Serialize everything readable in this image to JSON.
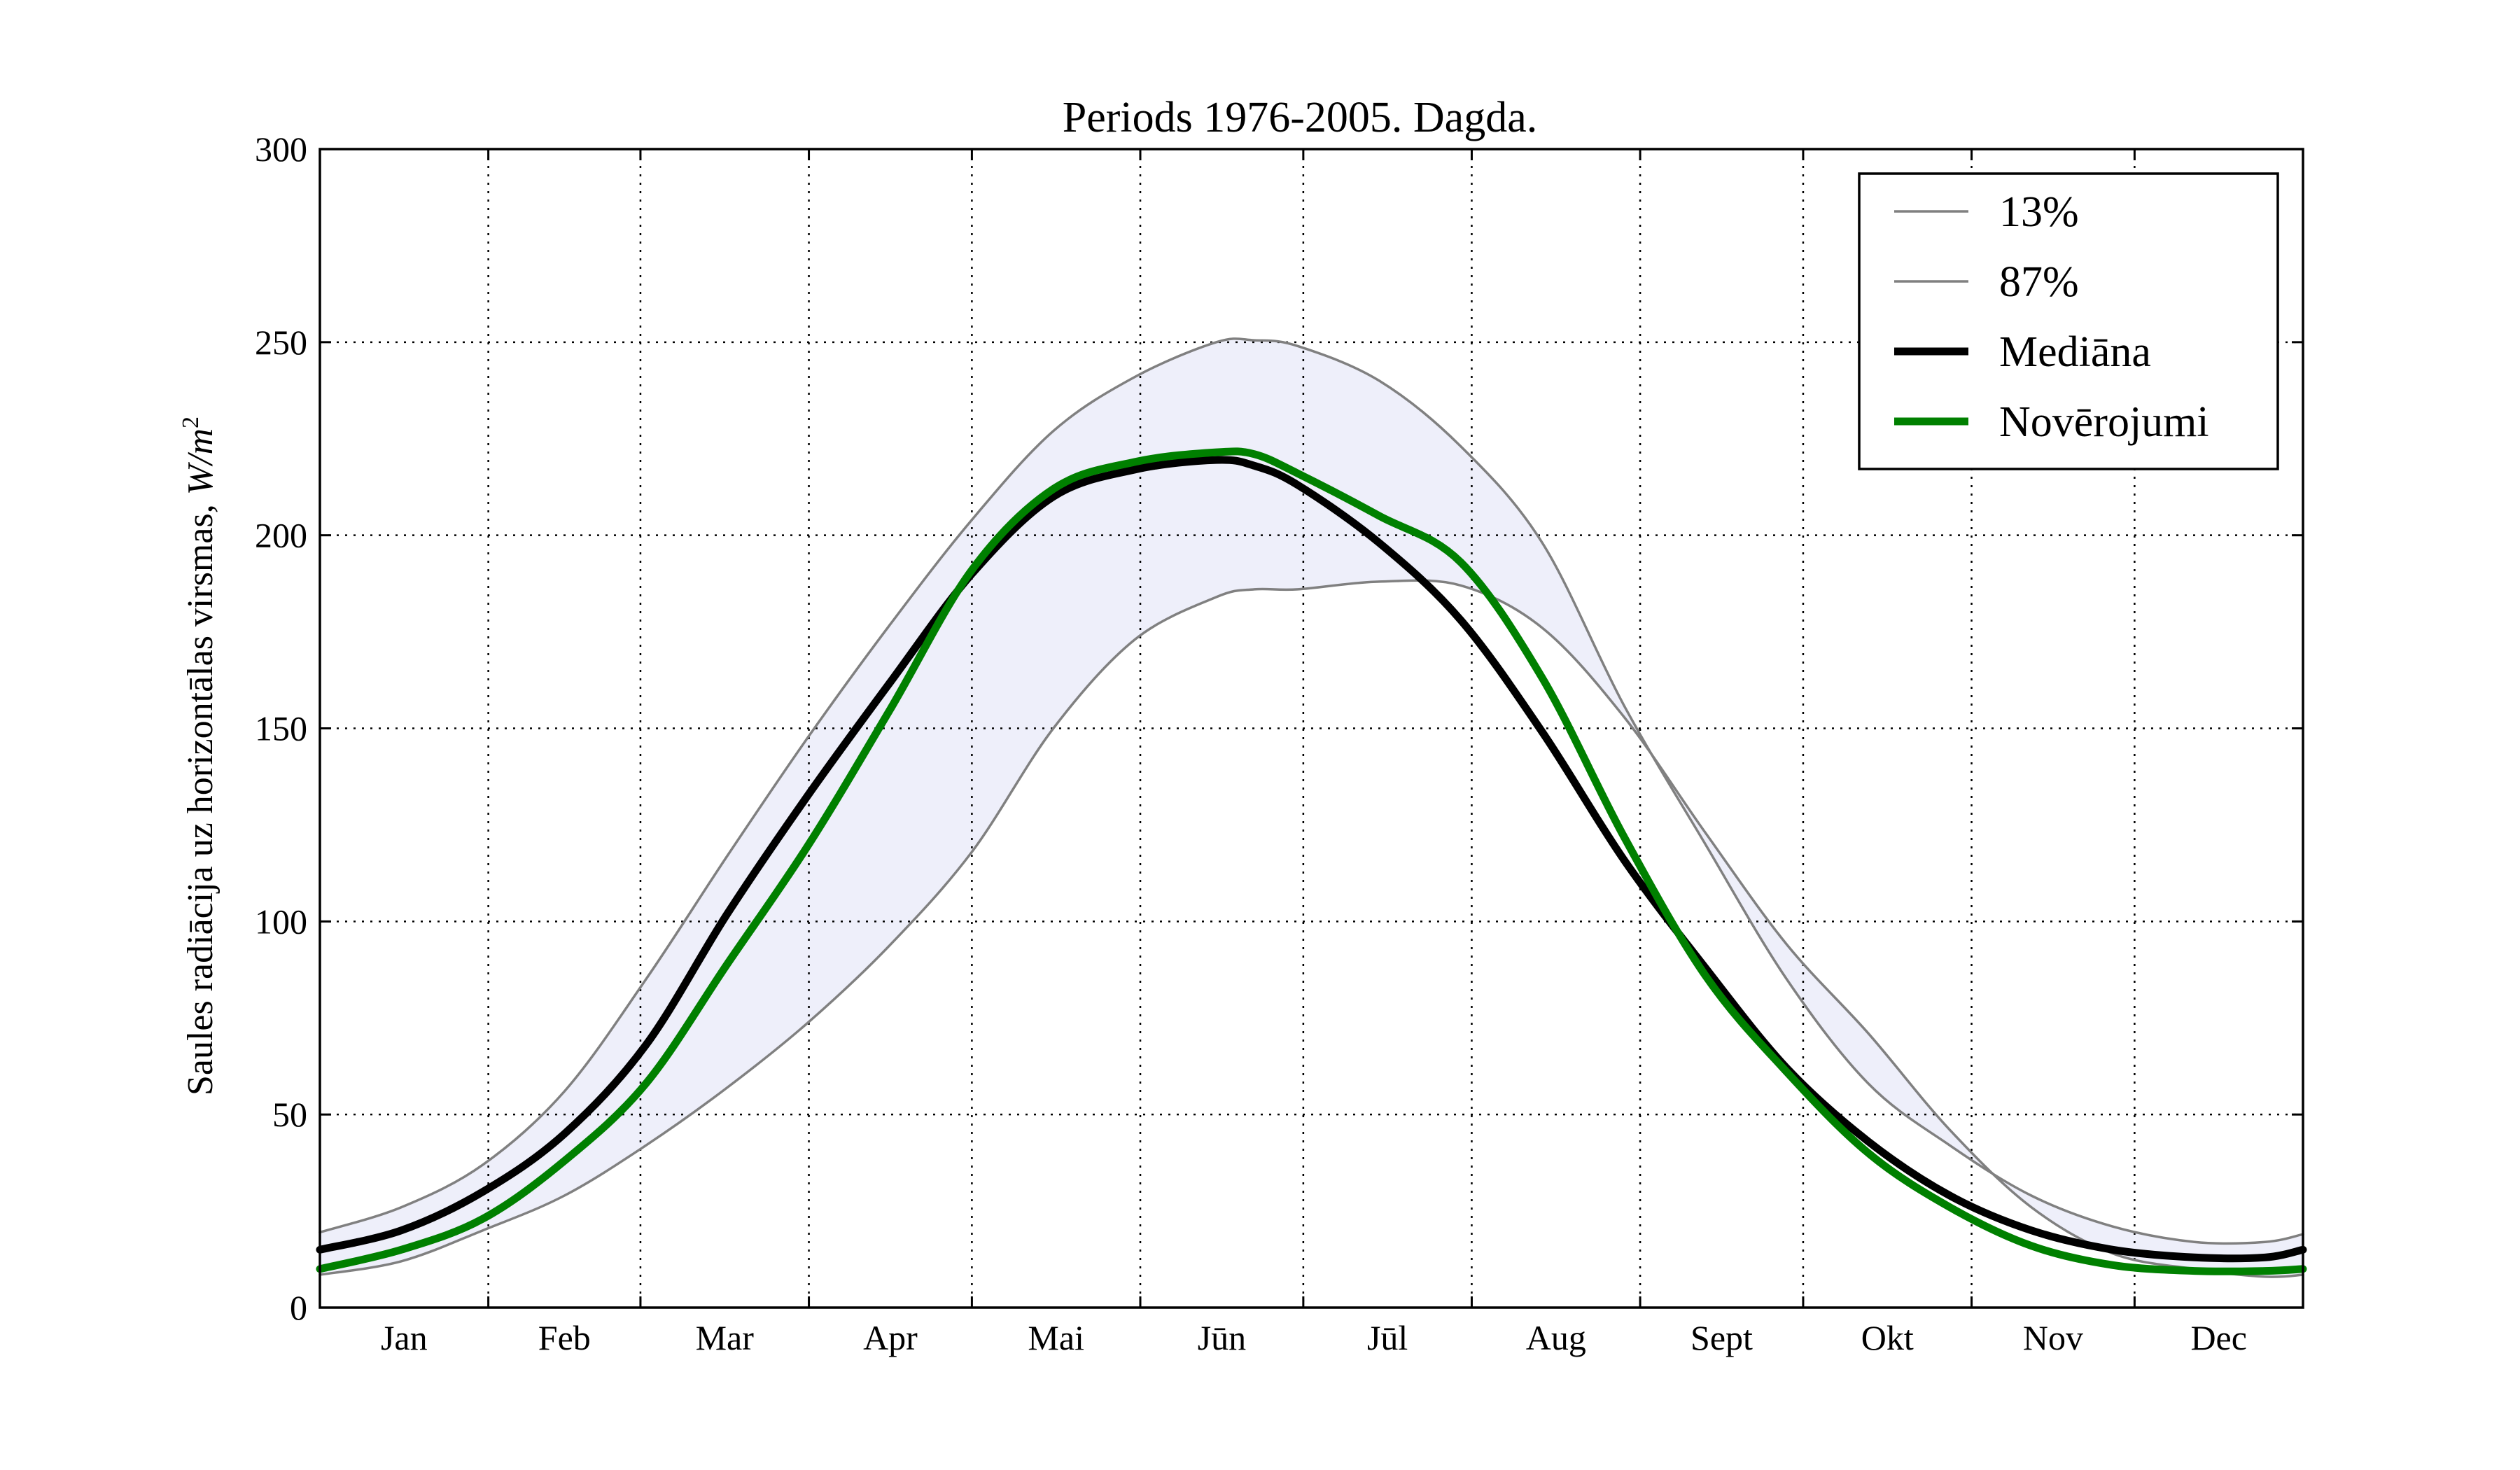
{
  "chart_data": {
    "type": "line",
    "title": "Periods 1976-2005. Dagda.",
    "ylabel": "Saules radiācija uz horizontālas virsmas, ",
    "ylabel_unit": "W/m",
    "ylabel_unit_exp": "2",
    "xlabel": "",
    "ylim": [
      0,
      300
    ],
    "yticks": [
      0,
      50,
      100,
      150,
      200,
      250,
      300
    ],
    "xlim": [
      0,
      365
    ],
    "month_boundaries": [
      31,
      59,
      90,
      120,
      151,
      181,
      212,
      243,
      273,
      304,
      334
    ],
    "month_labels": [
      "Jan",
      "Feb",
      "Mar",
      "Apr",
      "Mai",
      "Jūn",
      "Jūl",
      "Aug",
      "Sept",
      "Okt",
      "Nov",
      "Dec"
    ],
    "grid": true,
    "legend_position": "upper-right",
    "band_color": "#eeeffa",
    "series": [
      {
        "name": "13%",
        "color": "#808080",
        "width": "thin",
        "x": [
          0,
          15,
          30,
          45,
          60,
          75,
          90,
          105,
          120,
          135,
          150,
          165,
          172,
          180,
          195,
          210,
          225,
          240,
          255,
          270,
          285,
          300,
          315,
          330,
          345,
          358,
          365
        ],
        "y": [
          8.5,
          12,
          20,
          29,
          42,
          57,
          74,
          94,
          118,
          150,
          173,
          184,
          186,
          186,
          188,
          187,
          176,
          153,
          123,
          94,
          71,
          46,
          26,
          14,
          10,
          8,
          8.5
        ]
      },
      {
        "name": "87%",
        "color": "#808080",
        "width": "thin",
        "x": [
          0,
          15,
          30,
          45,
          60,
          75,
          90,
          105,
          120,
          135,
          150,
          165,
          172,
          180,
          195,
          210,
          225,
          240,
          255,
          270,
          285,
          300,
          315,
          330,
          345,
          358,
          365
        ],
        "y": [
          19.5,
          26,
          37,
          56,
          85,
          117,
          148,
          177,
          204,
          227,
          241,
          250,
          250.5,
          249,
          240,
          223,
          198,
          156,
          120,
          85,
          58,
          42,
          29,
          21,
          17,
          17,
          19
        ]
      },
      {
        "name": "Mediāna",
        "color": "#000000",
        "width": "thick",
        "x": [
          0,
          15,
          30,
          45,
          60,
          75,
          90,
          105,
          120,
          135,
          150,
          165,
          172,
          180,
          195,
          210,
          225,
          240,
          255,
          270,
          285,
          300,
          315,
          330,
          345,
          358,
          365
        ],
        "y": [
          15,
          20,
          30,
          45,
          68,
          102,
          133,
          162,
          190,
          210,
          217,
          219.5,
          218,
          213,
          198,
          178,
          149,
          116,
          88,
          62,
          43,
          29,
          20,
          15,
          13,
          13,
          15
        ]
      },
      {
        "name": "Novērojumi",
        "color": "#008000",
        "width": "thick",
        "x": [
          0,
          15,
          30,
          45,
          60,
          75,
          90,
          105,
          120,
          135,
          150,
          165,
          172,
          180,
          195,
          210,
          225,
          240,
          255,
          270,
          285,
          300,
          315,
          330,
          345,
          358,
          365
        ],
        "y": [
          10,
          15,
          23,
          38,
          58,
          89,
          120,
          155,
          191,
          212,
          219,
          221.5,
          221,
          216,
          205,
          193,
          163,
          122,
          86,
          61,
          40,
          26,
          16,
          11,
          9.5,
          9.5,
          10
        ]
      }
    ]
  }
}
